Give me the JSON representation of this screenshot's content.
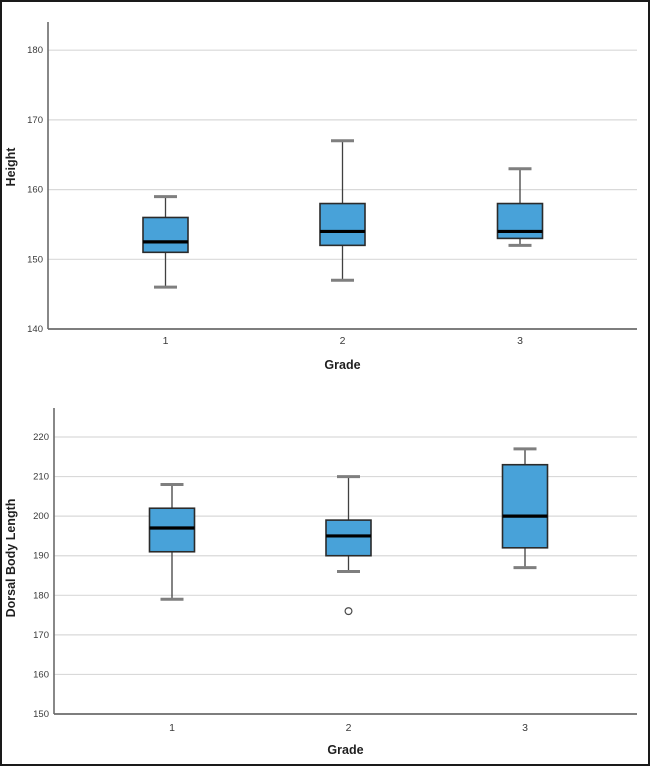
{
  "figure": {
    "description": "Two stacked statistical box plots comparing measurements across three grades",
    "background": "#ffffff",
    "border_color": "#1a1a1a"
  },
  "style": {
    "box_fill": "#48a2d9",
    "box_stroke": "#2b2b2b",
    "median_color": "#000000",
    "whisker_color": "#404040",
    "cap_color": "#7f7f7f",
    "grid_color": "#d9d9d9",
    "axis_color": "#6b6b6b",
    "tick_text_color": "#3a3a3a",
    "label_text_color": "#1f1f1f",
    "outlier_color": "#4a4a4a"
  },
  "chart_data": [
    {
      "type": "boxplot",
      "title": "",
      "xlabel": "Grade",
      "ylabel": "Height",
      "categories": [
        "1",
        "2",
        "3"
      ],
      "yticks": [
        140,
        150,
        160,
        170,
        180
      ],
      "ylim": [
        140,
        184
      ],
      "grid": true,
      "legend_position": "none",
      "boxes": [
        {
          "category": "1",
          "min": 146,
          "q1": 151,
          "median": 152.5,
          "q3": 156,
          "max": 159,
          "outliers": []
        },
        {
          "category": "2",
          "min": 147,
          "q1": 152,
          "median": 154,
          "q3": 158,
          "max": 167,
          "outliers": []
        },
        {
          "category": "3",
          "min": 152,
          "q1": 153,
          "median": 154,
          "q3": 158,
          "max": 163,
          "outliers": []
        }
      ]
    },
    {
      "type": "boxplot",
      "title": "",
      "xlabel": "Grade",
      "ylabel": "Dorsal Body Length",
      "categories": [
        "1",
        "2",
        "3"
      ],
      "yticks": [
        150,
        160,
        170,
        180,
        190,
        200,
        210,
        220
      ],
      "ylim": [
        150,
        227
      ],
      "grid": true,
      "legend_position": "none",
      "boxes": [
        {
          "category": "1",
          "min": 179,
          "q1": 191,
          "median": 197,
          "q3": 202,
          "max": 208,
          "outliers": []
        },
        {
          "category": "2",
          "min": 186,
          "q1": 190,
          "median": 195,
          "q3": 199,
          "max": 210,
          "outliers": [
            176
          ]
        },
        {
          "category": "3",
          "min": 187,
          "q1": 192,
          "median": 200,
          "q3": 213,
          "max": 217,
          "outliers": []
        }
      ]
    }
  ]
}
